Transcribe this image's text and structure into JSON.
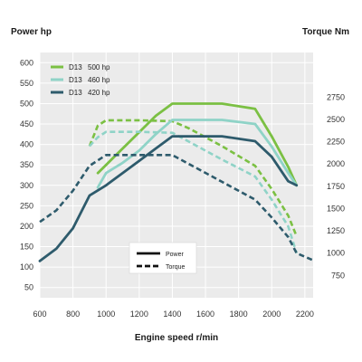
{
  "chart_data": {
    "type": "line",
    "left_axis_title": "Power hp",
    "right_axis_title": "Torque Nm",
    "xlabel": "Engine speed r/min",
    "x_ticks": [
      600,
      800,
      1000,
      1200,
      1400,
      1600,
      1800,
      2000,
      2200
    ],
    "x_range": [
      600,
      2250
    ],
    "power_ticks": [
      50,
      100,
      150,
      200,
      250,
      300,
      350,
      400,
      450,
      500,
      550,
      600
    ],
    "power_range": [
      25,
      625
    ],
    "torque_ticks": [
      750,
      1000,
      1250,
      1500,
      1750,
      2000,
      2250,
      2500,
      2750
    ],
    "torque_range": [
      500,
      3250
    ],
    "grid": true,
    "legend_position": "top-left",
    "series": [
      {
        "name": "D13 500 hp",
        "model": "D13",
        "rating": "500 hp",
        "color": "#7bc043",
        "power": [
          [
            950,
            330
          ],
          [
            1000,
            350
          ],
          [
            1100,
            390
          ],
          [
            1200,
            430
          ],
          [
            1300,
            470
          ],
          [
            1400,
            500
          ],
          [
            1600,
            500
          ],
          [
            1700,
            500
          ],
          [
            1900,
            487
          ],
          [
            2000,
            420
          ],
          [
            2100,
            345
          ],
          [
            2150,
            300
          ]
        ],
        "torque": [
          [
            900,
            2200
          ],
          [
            950,
            2430
          ],
          [
            1000,
            2490
          ],
          [
            1200,
            2490
          ],
          [
            1400,
            2480
          ],
          [
            1500,
            2400
          ],
          [
            1700,
            2200
          ],
          [
            1900,
            1980
          ],
          [
            2000,
            1720
          ],
          [
            2100,
            1420
          ],
          [
            2150,
            1190
          ]
        ]
      },
      {
        "name": "D13 460 hp",
        "model": "D13",
        "rating": "460 hp",
        "color": "#8fd3c7",
        "power": [
          [
            950,
            295
          ],
          [
            1000,
            330
          ],
          [
            1100,
            355
          ],
          [
            1200,
            385
          ],
          [
            1300,
            425
          ],
          [
            1400,
            460
          ],
          [
            1600,
            460
          ],
          [
            1700,
            460
          ],
          [
            1900,
            450
          ],
          [
            2000,
            395
          ],
          [
            2100,
            330
          ],
          [
            2150,
            300
          ]
        ],
        "torque": [
          [
            900,
            2200
          ],
          [
            950,
            2300
          ],
          [
            1000,
            2360
          ],
          [
            1200,
            2360
          ],
          [
            1400,
            2350
          ],
          [
            1500,
            2250
          ],
          [
            1700,
            2050
          ],
          [
            1900,
            1860
          ],
          [
            2000,
            1600
          ],
          [
            2100,
            1300
          ],
          [
            2150,
            1000
          ]
        ]
      },
      {
        "name": "D13 420 hp",
        "model": "D13",
        "rating": "420 hp",
        "color": "#2e5b6c",
        "power": [
          [
            600,
            115
          ],
          [
            700,
            145
          ],
          [
            800,
            195
          ],
          [
            900,
            275
          ],
          [
            1000,
            300
          ],
          [
            1100,
            330
          ],
          [
            1200,
            360
          ],
          [
            1300,
            390
          ],
          [
            1400,
            420
          ],
          [
            1600,
            420
          ],
          [
            1700,
            420
          ],
          [
            1900,
            408
          ],
          [
            2000,
            370
          ],
          [
            2100,
            310
          ],
          [
            2150,
            300
          ]
        ],
        "torque": [
          [
            600,
            1350
          ],
          [
            700,
            1480
          ],
          [
            800,
            1700
          ],
          [
            900,
            1980
          ],
          [
            1000,
            2100
          ],
          [
            1200,
            2100
          ],
          [
            1400,
            2100
          ],
          [
            1500,
            2000
          ],
          [
            1700,
            1800
          ],
          [
            1900,
            1600
          ],
          [
            2000,
            1400
          ],
          [
            2100,
            1180
          ],
          [
            2150,
            1000
          ],
          [
            2250,
            920
          ]
        ]
      }
    ],
    "line_key": {
      "solid_label": "Power",
      "dashed_label": "Torque"
    }
  }
}
